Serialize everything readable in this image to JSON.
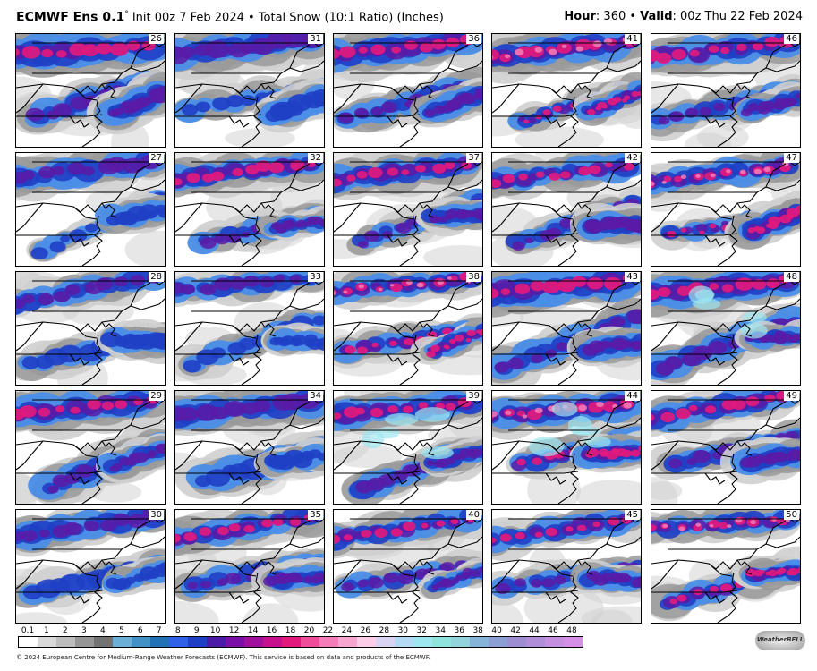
{
  "header": {
    "model_name": "ECMWF Ens 0.1",
    "degree_mark": "°",
    "init_text": " Init 00z 7 Feb 2024 • Total Snow (10:1 Ratio) (Inches)",
    "hour_label": "Hour",
    "hour_value": ": 360 • ",
    "valid_label": "Valid",
    "valid_value": ": 00z Thu 22 Feb 2024"
  },
  "members": [
    "26",
    "31",
    "36",
    "41",
    "46",
    "27",
    "32",
    "37",
    "42",
    "47",
    "28",
    "33",
    "38",
    "43",
    "48",
    "29",
    "34",
    "39",
    "44",
    "49",
    "30",
    "35",
    "40",
    "45",
    "50"
  ],
  "legend": {
    "labels": [
      "0.1",
      "1",
      "2",
      "3",
      "4",
      "5",
      "6",
      "7",
      "8",
      "9",
      "10",
      "12",
      "14",
      "16",
      "18",
      "20",
      "22",
      "24",
      "26",
      "28",
      "30",
      "32",
      "34",
      "36",
      "38",
      "40",
      "42",
      "44",
      "46",
      "48"
    ],
    "colors": [
      "#ffffff",
      "#d9d9d9",
      "#bdbdbd",
      "#969696",
      "#737373",
      "#6baed6",
      "#4292c6",
      "#2171b5",
      "#3060e8",
      "#1f3fc4",
      "#4b1aa6",
      "#7a0fa8",
      "#a0109a",
      "#c8108c",
      "#e31a7c",
      "#ef4d9a",
      "#f47cb8",
      "#f7a6d0",
      "#fbcde6",
      "#d9d4f2",
      "#b3d9f5",
      "#9ee6ef",
      "#8ee3dc",
      "#93d3da",
      "#86b4d8",
      "#8c9fd4",
      "#9d8ed2",
      "#b18fd8",
      "#c48fde",
      "#d68fe6"
    ]
  },
  "footer": {
    "text": "© 2024 European Centre for Medium-Range Weather Forecasts (ECMWF). This service is based on data and products of the ECMWF."
  },
  "logo": {
    "text": "WeatherBELL",
    "icon": "weatherbell-logo"
  },
  "palette": {
    "blue": "#4a8ee8",
    "darkblue": "#1f3fc4",
    "purple": "#5a1aa6",
    "magenta": "#e31a7c",
    "pink": "#f47cb8",
    "lightpink": "#f9b6d8",
    "cyan": "#9ee6ef",
    "gray": "#9a9a9a",
    "darkgray": "#6e6e6e",
    "lightgray": "#cfcfcf"
  }
}
